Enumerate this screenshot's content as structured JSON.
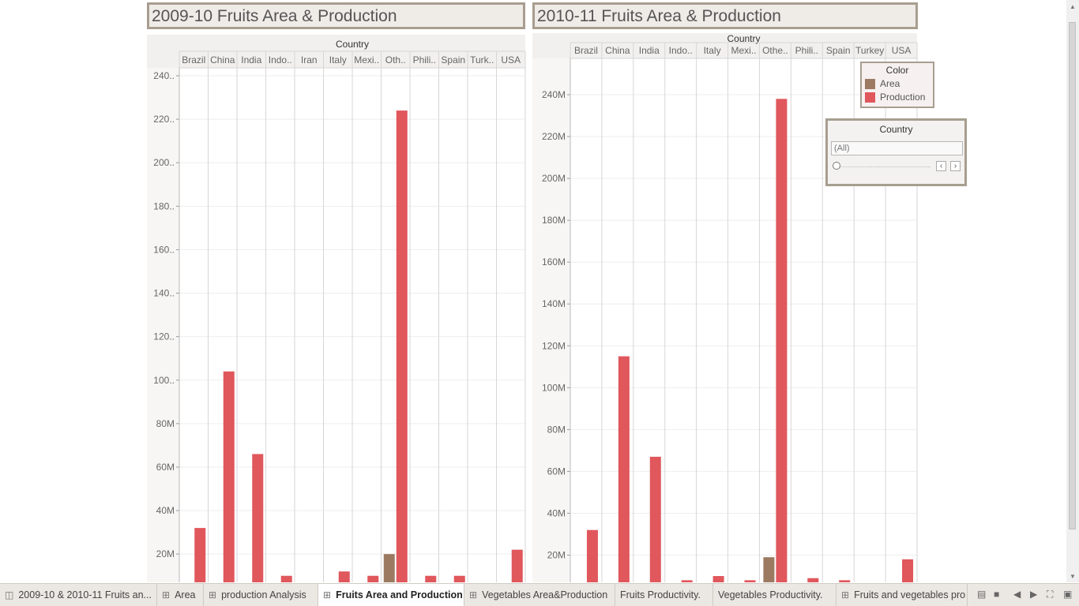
{
  "dashboard": {
    "left_title": "2009-10 Fruits Area & Production",
    "right_title": "2010-11 Fruits Area & Production"
  },
  "legend": {
    "title": "Color",
    "items": [
      {
        "label": "Area",
        "color": "#9c7a62"
      },
      {
        "label": "Production",
        "color": "#e0575c"
      }
    ]
  },
  "filter": {
    "title": "Country",
    "value": "(All)",
    "prev_icon": "chevron-left-icon",
    "next_icon": "chevron-right-icon"
  },
  "chart_data": [
    {
      "type": "bar",
      "header": "Country",
      "categories": [
        "Brazil",
        "China",
        "India",
        "Indo..",
        "Iran",
        "Italy",
        "Mexi..",
        "Oth..",
        "Phili..",
        "Spain",
        "Turk..",
        "USA"
      ],
      "series": [
        {
          "name": "Area",
          "color": "#9c7a62",
          "values": [
            0,
            4,
            0,
            0,
            0,
            0,
            0,
            20,
            0,
            0,
            0,
            0
          ]
        },
        {
          "name": "Production",
          "color": "#e0575c",
          "values": [
            32,
            104,
            66,
            10,
            7,
            12,
            10,
            224,
            10,
            10,
            7,
            22
          ]
        }
      ],
      "yticks": [
        "20M",
        "40M",
        "60M",
        "80M",
        "100..",
        "120..",
        "140..",
        "160..",
        "180..",
        "200..",
        "220..",
        "240.."
      ],
      "ylim": [
        0,
        240
      ],
      "ymin_visible": 7,
      "grid": true
    },
    {
      "type": "bar",
      "header": "Country",
      "categories": [
        "Brazil",
        "China",
        "India",
        "Indo..",
        "Italy",
        "Mexi..",
        "Othe..",
        "Phili..",
        "Spain",
        "Turkey",
        "USA"
      ],
      "series": [
        {
          "name": "Area",
          "color": "#9c7a62",
          "values": [
            0,
            3,
            0,
            0,
            0,
            0,
            19,
            0,
            0,
            0,
            0
          ]
        },
        {
          "name": "Production",
          "color": "#e0575c",
          "values": [
            32,
            115,
            67,
            8,
            10,
            8,
            238,
            9,
            8,
            6,
            18
          ]
        }
      ],
      "yticks": [
        "20M",
        "40M",
        "60M",
        "80M",
        "100M",
        "120M",
        "140M",
        "160M",
        "180M",
        "200M",
        "220M",
        "240M"
      ],
      "ylim": [
        0,
        240
      ],
      "ymin_visible": 7,
      "grid": true
    }
  ],
  "tabs": [
    {
      "label": "2009-10 & 2010-11 Fruits an...",
      "icon": "book-icon",
      "active": false
    },
    {
      "label": "Area",
      "icon": "grid-icon",
      "active": false
    },
    {
      "label": "production Analysis",
      "icon": "grid-icon",
      "active": false
    },
    {
      "label": "Fruits Area and Production",
      "icon": "grid-icon",
      "active": true
    },
    {
      "label": "Vegetables Area&Production",
      "icon": "grid-icon",
      "active": false
    },
    {
      "label": "Fruits Productivity.",
      "icon": "",
      "active": false
    },
    {
      "label": "Vegetables Productivity.",
      "icon": "",
      "active": false
    },
    {
      "label": "Fruits and vegetables pro",
      "icon": "grid-icon",
      "active": false
    }
  ]
}
